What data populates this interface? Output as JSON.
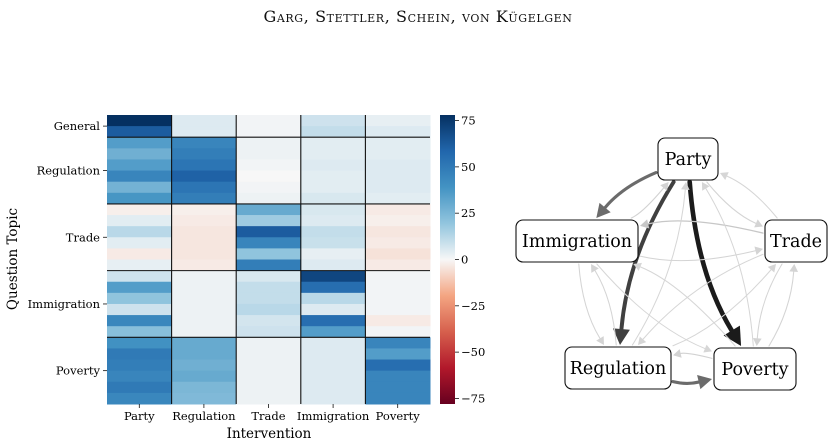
{
  "header": {
    "running_head": "Garg, Stettler, Schein, von Kügelgen"
  },
  "heatmap": {
    "xlabel": "Intervention",
    "ylabel": "Question Topic",
    "col_labels": [
      "Party",
      "Regulation",
      "Trade",
      "Immigration",
      "Poverty"
    ],
    "groups": [
      {
        "label": "General",
        "rows": 2
      },
      {
        "label": "Regulation",
        "rows": 6
      },
      {
        "label": "Trade",
        "rows": 6
      },
      {
        "label": "Immigration",
        "rows": 6
      },
      {
        "label": "Poverty",
        "rows": 6
      }
    ],
    "colorbar_ticks": [
      "75",
      "50",
      "25",
      "0",
      "−25",
      "−50",
      "−75"
    ]
  },
  "chart_data": {
    "type": "heatmap",
    "xlabel": "Intervention",
    "ylabel": "Question Topic",
    "categories_x": [
      "Party",
      "Regulation",
      "Trade",
      "Immigration",
      "Poverty"
    ],
    "vlim": [
      -78,
      78
    ],
    "colorbar_ticks": [
      75,
      50,
      25,
      0,
      -25,
      -50,
      -75
    ],
    "rows": [
      {
        "topic": "General",
        "values": [
          78,
          5,
          1,
          8,
          3
        ]
      },
      {
        "topic": "General",
        "values": [
          62,
          5,
          1,
          10,
          5
        ]
      },
      {
        "topic": "Regulation",
        "values": [
          35,
          45,
          2,
          4,
          4
        ]
      },
      {
        "topic": "Regulation",
        "values": [
          28,
          48,
          2,
          4,
          4
        ]
      },
      {
        "topic": "Regulation",
        "values": [
          35,
          52,
          1,
          5,
          5
        ]
      },
      {
        "topic": "Regulation",
        "values": [
          45,
          60,
          0,
          4,
          5
        ]
      },
      {
        "topic": "Regulation",
        "values": [
          27,
          52,
          1,
          4,
          5
        ]
      },
      {
        "topic": "Regulation",
        "values": [
          38,
          48,
          2,
          6,
          4
        ]
      },
      {
        "topic": "Trade",
        "values": [
          -2,
          -2,
          30,
          6,
          -3
        ]
      },
      {
        "topic": "Trade",
        "values": [
          4,
          -3,
          17,
          5,
          -2
        ]
      },
      {
        "topic": "Trade",
        "values": [
          12,
          -4,
          62,
          10,
          -4
        ]
      },
      {
        "topic": "Trade",
        "values": [
          4,
          -4,
          45,
          9,
          -3
        ]
      },
      {
        "topic": "Trade",
        "values": [
          -3,
          -4,
          20,
          3,
          -5
        ]
      },
      {
        "topic": "Trade",
        "values": [
          3,
          -3,
          48,
          5,
          -3
        ]
      },
      {
        "topic": "Immigration",
        "values": [
          8,
          2,
          6,
          70,
          1
        ]
      },
      {
        "topic": "Immigration",
        "values": [
          35,
          2,
          10,
          55,
          1
        ]
      },
      {
        "topic": "Immigration",
        "values": [
          20,
          2,
          10,
          12,
          1
        ]
      },
      {
        "topic": "Immigration",
        "values": [
          8,
          2,
          12,
          5,
          1
        ]
      },
      {
        "topic": "Immigration",
        "values": [
          44,
          2,
          7,
          55,
          -3
        ]
      },
      {
        "topic": "Immigration",
        "values": [
          22,
          2,
          8,
          35,
          1
        ]
      },
      {
        "topic": "Poverty",
        "values": [
          40,
          30,
          2,
          5,
          45
        ]
      },
      {
        "topic": "Poverty",
        "values": [
          50,
          30,
          2,
          5,
          35
        ]
      },
      {
        "topic": "Poverty",
        "values": [
          48,
          28,
          2,
          5,
          55
        ]
      },
      {
        "topic": "Poverty",
        "values": [
          45,
          30,
          2,
          5,
          45
        ]
      },
      {
        "topic": "Poverty",
        "values": [
          50,
          25,
          2,
          5,
          45
        ]
      },
      {
        "topic": "Poverty",
        "values": [
          44,
          24,
          2,
          5,
          45
        ]
      }
    ]
  },
  "graph": {
    "nodes": [
      {
        "id": "party",
        "label": "Party"
      },
      {
        "id": "immigration",
        "label": "Immigration"
      },
      {
        "id": "trade",
        "label": "Trade"
      },
      {
        "id": "regulation",
        "label": "Regulation"
      },
      {
        "id": "poverty",
        "label": "Poverty"
      }
    ],
    "edges": [
      {
        "from": "party",
        "to": "poverty",
        "strength": 0.92
      },
      {
        "from": "party",
        "to": "regulation",
        "strength": 0.75
      },
      {
        "from": "party",
        "to": "immigration",
        "strength": 0.55
      },
      {
        "from": "regulation",
        "to": "poverty",
        "strength": 0.55
      },
      {
        "from": "party",
        "to": "trade",
        "strength": 0.06
      },
      {
        "from": "trade",
        "to": "party",
        "strength": 0.05
      },
      {
        "from": "immigration",
        "to": "party",
        "strength": 0.07
      },
      {
        "from": "trade",
        "to": "immigration",
        "strength": 0.12
      },
      {
        "from": "immigration",
        "to": "trade",
        "strength": 0.06
      },
      {
        "from": "immigration",
        "to": "regulation",
        "strength": 0.06
      },
      {
        "from": "regulation",
        "to": "immigration",
        "strength": 0.06
      },
      {
        "from": "trade",
        "to": "poverty",
        "strength": 0.06
      },
      {
        "from": "poverty",
        "to": "trade",
        "strength": 0.06
      },
      {
        "from": "regulation",
        "to": "trade",
        "strength": 0.05
      },
      {
        "from": "trade",
        "to": "regulation",
        "strength": 0.05
      },
      {
        "from": "immigration",
        "to": "poverty",
        "strength": 0.05
      },
      {
        "from": "poverty",
        "to": "immigration",
        "strength": 0.05
      },
      {
        "from": "poverty",
        "to": "regulation",
        "strength": 0.07
      },
      {
        "from": "regulation",
        "to": "party",
        "strength": 0.05
      },
      {
        "from": "poverty",
        "to": "party",
        "strength": 0.05
      }
    ]
  }
}
